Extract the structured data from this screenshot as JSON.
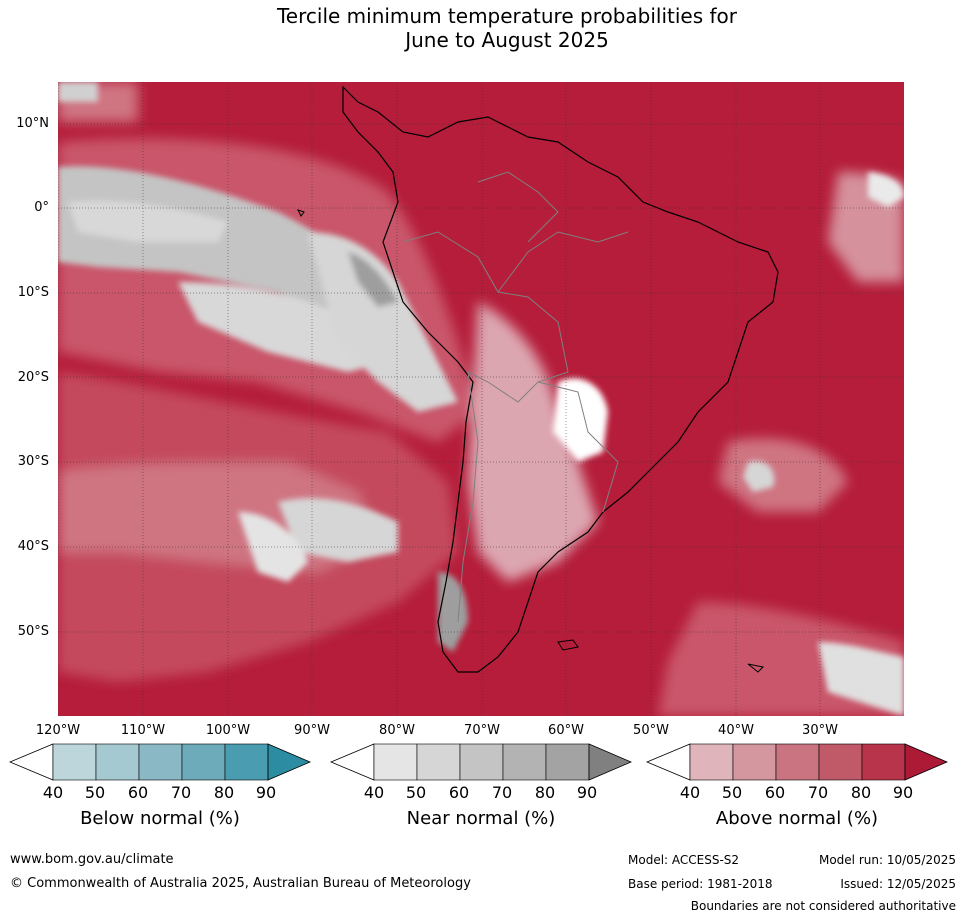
{
  "title": {
    "line1": "Tercile minimum temperature probabilities for",
    "line2": "June to August 2025"
  },
  "map": {
    "latitude_labels": [
      "10°N",
      "0°",
      "10°S",
      "20°S",
      "30°S",
      "40°S",
      "50°S"
    ],
    "longitude_labels": [
      "120°W",
      "110°W",
      "100°W",
      "90°W",
      "80°W",
      "70°W",
      "60°W",
      "50°W",
      "40°W",
      "30°W"
    ],
    "dominant_category": "Above normal",
    "colors": {
      "above_high": "#b51d3a",
      "near_low": "#d7d7d7",
      "near_mid": "#c4c4c4",
      "near_high": "#9e9e9e",
      "land_outline": "#000000",
      "border": "#808080"
    }
  },
  "legends": [
    {
      "title": "Below normal (%)",
      "ticks": [
        "40",
        "50",
        "60",
        "70",
        "80",
        "90"
      ],
      "colors": [
        "#ffffff",
        "#bcd6dc",
        "#a5c9d1",
        "#8ab9c5",
        "#6eabba",
        "#4a9db0",
        "#2c8ca1"
      ]
    },
    {
      "title": "Near normal (%)",
      "ticks": [
        "40",
        "50",
        "60",
        "70",
        "80",
        "90"
      ],
      "colors": [
        "#ffffff",
        "#e5e5e5",
        "#d6d6d6",
        "#c4c4c4",
        "#b3b3b3",
        "#a3a3a3",
        "#808080"
      ]
    },
    {
      "title": "Above normal (%)",
      "ticks": [
        "40",
        "50",
        "60",
        "70",
        "80",
        "90"
      ],
      "colors": [
        "#ffffff",
        "#e0b4bb",
        "#d4979f",
        "#c97480",
        "#c05a69",
        "#b8344b",
        "#ac1a36"
      ]
    }
  ],
  "footer": {
    "website": "www.bom.gov.au/climate",
    "copyright": "© Commonwealth of Australia 2025, Australian Bureau of Meteorology",
    "model": "Model: ACCESS-S2",
    "model_run": "Model run: 10/05/2025",
    "base_period": "Base period: 1981-2018",
    "issued": "Issued: 12/05/2025",
    "disclaimer": "Boundaries are not considered authoritative"
  }
}
